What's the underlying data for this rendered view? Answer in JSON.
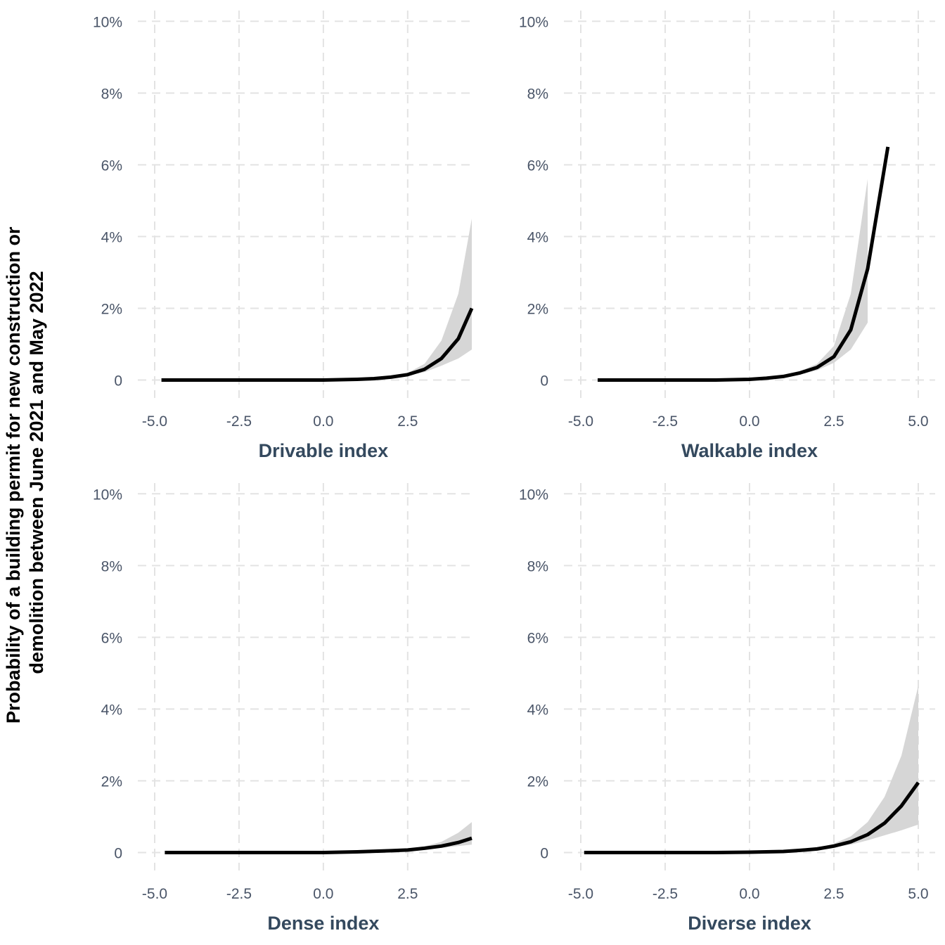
{
  "y_axis_title": [
    "Probability of a building permit for new construction or",
    "demolition between June 2021 and May 2022"
  ],
  "y_ticks": [
    {
      "value": 0,
      "label": "0"
    },
    {
      "value": 2,
      "label": "2%"
    },
    {
      "value": 4,
      "label": "4%"
    },
    {
      "value": 6,
      "label": "6%"
    },
    {
      "value": 8,
      "label": "8%"
    },
    {
      "value": 10,
      "label": "10%"
    }
  ],
  "chart_data": [
    {
      "type": "line",
      "xlabel": "Drivable index",
      "xlim": [
        -5.5,
        4.4
      ],
      "ylim": [
        -0.5,
        10.3
      ],
      "x_ticks": [
        {
          "value": -5,
          "label": "-5.0"
        },
        {
          "value": -2.5,
          "label": "-2.5"
        },
        {
          "value": 0,
          "label": "0.0"
        },
        {
          "value": 2.5,
          "label": "2.5"
        }
      ],
      "x": [
        -4.8,
        -4.0,
        -3.0,
        -2.0,
        -1.0,
        0.0,
        1.0,
        1.5,
        2.0,
        2.5,
        3.0,
        3.5,
        4.0,
        4.4
      ],
      "y": [
        0.0,
        0.0,
        0.0,
        0.0,
        0.0,
        0.0,
        0.02,
        0.04,
        0.08,
        0.15,
        0.3,
        0.6,
        1.15,
        2.0
      ],
      "lower": [
        0.0,
        0.0,
        0.0,
        0.0,
        0.0,
        0.0,
        0.02,
        0.03,
        0.06,
        0.12,
        0.22,
        0.4,
        0.6,
        0.85
      ],
      "upper": [
        0.0,
        0.0,
        0.0,
        0.0,
        0.0,
        0.0,
        0.02,
        0.05,
        0.1,
        0.2,
        0.45,
        1.1,
        2.4,
        4.5
      ]
    },
    {
      "type": "line",
      "xlabel": "Walkable index",
      "xlim": [
        -5.5,
        5.5
      ],
      "ylim": [
        -0.5,
        10.3
      ],
      "x_ticks": [
        {
          "value": -5,
          "label": "-5.0"
        },
        {
          "value": -2.5,
          "label": "-2.5"
        },
        {
          "value": 0,
          "label": "0.0"
        },
        {
          "value": 2.5,
          "label": "2.5"
        },
        {
          "value": 5,
          "label": "5.0"
        }
      ],
      "x": [
        -4.5,
        -3.0,
        -2.0,
        -1.0,
        0.0,
        0.5,
        1.0,
        1.5,
        2.0,
        2.5,
        3.0,
        3.5,
        4.1
      ],
      "y": [
        0.0,
        0.0,
        0.0,
        0.0,
        0.02,
        0.05,
        0.1,
        0.2,
        0.35,
        0.65,
        1.4,
        3.1,
        6.5
      ],
      "lower": [
        0.0,
        0.0,
        0.0,
        0.0,
        0.01,
        0.04,
        0.08,
        0.16,
        0.27,
        0.48,
        0.85,
        1.6,
        null
      ],
      "upper": [
        0.0,
        0.0,
        0.0,
        0.0,
        0.03,
        0.06,
        0.12,
        0.25,
        0.45,
        0.95,
        2.4,
        5.6,
        null
      ]
    },
    {
      "type": "line",
      "xlabel": "Dense index",
      "xlim": [
        -5.5,
        4.4
      ],
      "ylim": [
        -0.5,
        10.3
      ],
      "x_ticks": [
        {
          "value": -5,
          "label": "-5.0"
        },
        {
          "value": -2.5,
          "label": "-2.5"
        },
        {
          "value": 0,
          "label": "0.0"
        },
        {
          "value": 2.5,
          "label": "2.5"
        }
      ],
      "x": [
        -4.7,
        -3.0,
        -2.0,
        -1.0,
        0.0,
        1.0,
        2.0,
        2.5,
        3.0,
        3.5,
        4.0,
        4.4
      ],
      "y": [
        0.0,
        0.0,
        0.0,
        0.0,
        0.0,
        0.02,
        0.05,
        0.07,
        0.12,
        0.18,
        0.28,
        0.4
      ],
      "lower": [
        0.0,
        0.0,
        0.0,
        0.0,
        0.0,
        0.02,
        0.04,
        0.06,
        0.09,
        0.13,
        0.18,
        0.22
      ],
      "upper": [
        0.0,
        0.0,
        0.0,
        0.0,
        0.0,
        0.02,
        0.06,
        0.09,
        0.17,
        0.3,
        0.55,
        0.85
      ]
    },
    {
      "type": "line",
      "xlabel": "Diverse index",
      "xlim": [
        -5.5,
        5.5
      ],
      "ylim": [
        -0.5,
        10.3
      ],
      "x_ticks": [
        {
          "value": -5,
          "label": "-5.0"
        },
        {
          "value": -2.5,
          "label": "-2.5"
        },
        {
          "value": 0,
          "label": "0.0"
        },
        {
          "value": 2.5,
          "label": "2.5"
        },
        {
          "value": 5,
          "label": "5.0"
        }
      ],
      "x": [
        -4.9,
        -3.0,
        -2.0,
        -1.0,
        0.0,
        1.0,
        1.5,
        2.0,
        2.5,
        3.0,
        3.5,
        4.0,
        4.5,
        5.0
      ],
      "y": [
        0.0,
        0.0,
        0.0,
        0.0,
        0.01,
        0.03,
        0.06,
        0.1,
        0.18,
        0.3,
        0.5,
        0.82,
        1.3,
        1.95
      ],
      "lower": [
        0.0,
        0.0,
        0.0,
        0.0,
        0.01,
        0.02,
        0.05,
        0.08,
        0.14,
        0.22,
        0.34,
        0.48,
        0.62,
        0.78
      ],
      "upper": [
        0.0,
        0.0,
        0.0,
        0.0,
        0.01,
        0.04,
        0.08,
        0.13,
        0.25,
        0.45,
        0.85,
        1.55,
        2.7,
        4.65
      ]
    }
  ]
}
